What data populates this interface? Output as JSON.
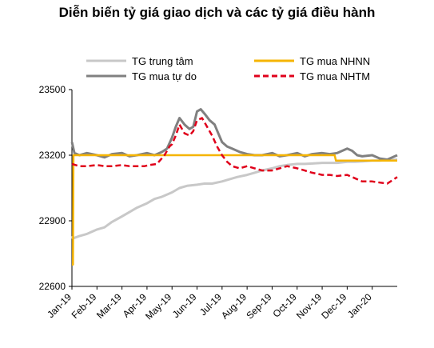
{
  "chart_data": {
    "type": "line",
    "title": "Diễn biến tỷ giá giao dịch và các tỷ giá điều hành",
    "xlabel": "",
    "ylabel": "",
    "ylim": [
      22600,
      23500
    ],
    "yticks": [
      22600,
      22900,
      23200,
      23500
    ],
    "x_tick_labels": [
      "Jan-19",
      "Feb-19",
      "Mar-19",
      "Apr-19",
      "May-19",
      "Jun-19",
      "Jul-19",
      "Aug-19",
      "Sep-19",
      "Oct-19",
      "Nov-19",
      "Dec-19",
      "Jan-20"
    ],
    "x_range": [
      0,
      13
    ],
    "legend_position": "top",
    "series": [
      {
        "name": "TG trung tâm",
        "color": "#c8c8c8",
        "style": "solid",
        "x": [
          0.0,
          0.04,
          0.3,
          0.6,
          1.0,
          1.3,
          1.6,
          2.0,
          2.3,
          2.6,
          3.0,
          3.3,
          3.6,
          4.0,
          4.3,
          4.6,
          5.0,
          5.3,
          5.6,
          6.0,
          6.3,
          6.6,
          7.0,
          7.3,
          7.6,
          8.0,
          8.3,
          8.6,
          9.0,
          9.3,
          9.6,
          10.0,
          10.3,
          10.6,
          11.0,
          11.3,
          11.6,
          12.0,
          12.3,
          12.6,
          13.0
        ],
        "values": [
          22830,
          22820,
          22830,
          22840,
          22860,
          22870,
          22895,
          22920,
          22940,
          22960,
          22980,
          23000,
          23010,
          23030,
          23050,
          23060,
          23065,
          23070,
          23070,
          23080,
          23090,
          23100,
          23110,
          23120,
          23130,
          23140,
          23150,
          23155,
          23160,
          23160,
          23162,
          23165,
          23165,
          23165,
          23170,
          23170,
          23172,
          23175,
          23175,
          23178,
          23180
        ]
      },
      {
        "name": "TG mua tự do",
        "color": "#808080",
        "style": "solid",
        "x": [
          0.0,
          0.1,
          0.3,
          0.6,
          1.0,
          1.3,
          1.6,
          2.0,
          2.3,
          2.6,
          3.0,
          3.3,
          3.6,
          3.8,
          4.0,
          4.15,
          4.3,
          4.5,
          4.7,
          4.85,
          5.0,
          5.15,
          5.3,
          5.5,
          5.7,
          5.85,
          6.0,
          6.2,
          6.4,
          6.7,
          7.0,
          7.3,
          7.6,
          8.0,
          8.3,
          8.6,
          9.0,
          9.3,
          9.6,
          10.0,
          10.3,
          10.6,
          11.0,
          11.2,
          11.4,
          11.6,
          12.0,
          12.3,
          12.6,
          13.0
        ],
        "values": [
          23260,
          23210,
          23200,
          23210,
          23200,
          23190,
          23205,
          23210,
          23195,
          23200,
          23210,
          23200,
          23215,
          23230,
          23280,
          23330,
          23370,
          23340,
          23320,
          23330,
          23400,
          23410,
          23390,
          23360,
          23340,
          23300,
          23260,
          23240,
          23230,
          23215,
          23205,
          23200,
          23200,
          23210,
          23195,
          23200,
          23210,
          23195,
          23205,
          23210,
          23205,
          23210,
          23230,
          23220,
          23200,
          23195,
          23200,
          23185,
          23180,
          23200
        ]
      },
      {
        "name": "TG mua NHNN",
        "color": "#f5b400",
        "style": "solid",
        "x": [
          0.0,
          0.04,
          0.06,
          2.9,
          3.2,
          4.0,
          5.0,
          6.0,
          7.0,
          8.0,
          9.0,
          10.0,
          10.5,
          10.55,
          11.0,
          12.0,
          13.0
        ],
        "values": [
          22700,
          22700,
          23200,
          23200,
          23200,
          23200,
          23200,
          23200,
          23200,
          23200,
          23200,
          23200,
          23200,
          23175,
          23175,
          23175,
          23175
        ]
      },
      {
        "name": "TG mua NHTM",
        "color": "#e0001b",
        "style": "dashed",
        "x": [
          0.0,
          0.3,
          0.6,
          1.0,
          1.3,
          1.6,
          2.0,
          2.3,
          2.6,
          2.9,
          3.1,
          3.4,
          3.7,
          3.9,
          4.0,
          4.15,
          4.3,
          4.5,
          4.7,
          4.85,
          5.0,
          5.2,
          5.4,
          5.6,
          5.8,
          6.0,
          6.2,
          6.4,
          6.7,
          7.0,
          7.3,
          7.6,
          8.0,
          8.3,
          8.6,
          9.0,
          9.3,
          9.6,
          10.0,
          10.3,
          10.6,
          11.0,
          11.3,
          11.6,
          12.0,
          12.3,
          12.6,
          13.0
        ],
        "values": [
          23160,
          23150,
          23150,
          23155,
          23150,
          23150,
          23155,
          23150,
          23150,
          23150,
          23155,
          23160,
          23200,
          23240,
          23250,
          23290,
          23340,
          23300,
          23290,
          23310,
          23360,
          23370,
          23330,
          23290,
          23240,
          23200,
          23170,
          23150,
          23140,
          23150,
          23140,
          23130,
          23130,
          23140,
          23150,
          23140,
          23130,
          23120,
          23110,
          23110,
          23105,
          23110,
          23095,
          23080,
          23080,
          23075,
          23070,
          23100
        ]
      }
    ]
  }
}
